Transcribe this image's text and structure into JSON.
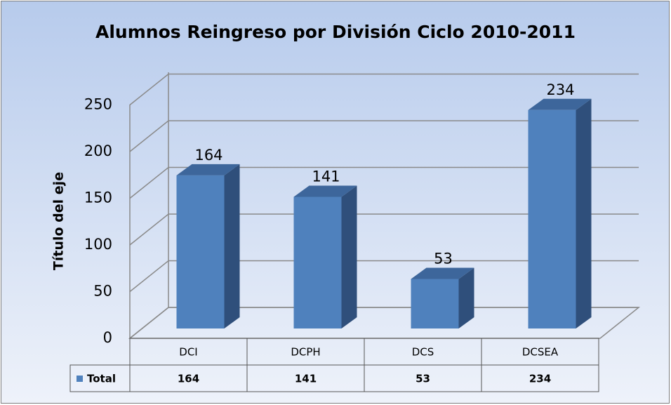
{
  "chart_data": {
    "type": "bar",
    "title": "Alumnos Reingreso por División Ciclo 2010-2011",
    "y_axis_label": "Título del eje",
    "categories": [
      "DCI",
      "DCPH",
      "DCS",
      "DCSEA"
    ],
    "series": [
      {
        "name": "Total",
        "color": "#4f81bd",
        "values": [
          164,
          141,
          53,
          234
        ]
      }
    ],
    "ylim": [
      0,
      250
    ],
    "yticks": [
      0,
      50,
      100,
      150,
      200,
      250
    ],
    "grid": true
  }
}
